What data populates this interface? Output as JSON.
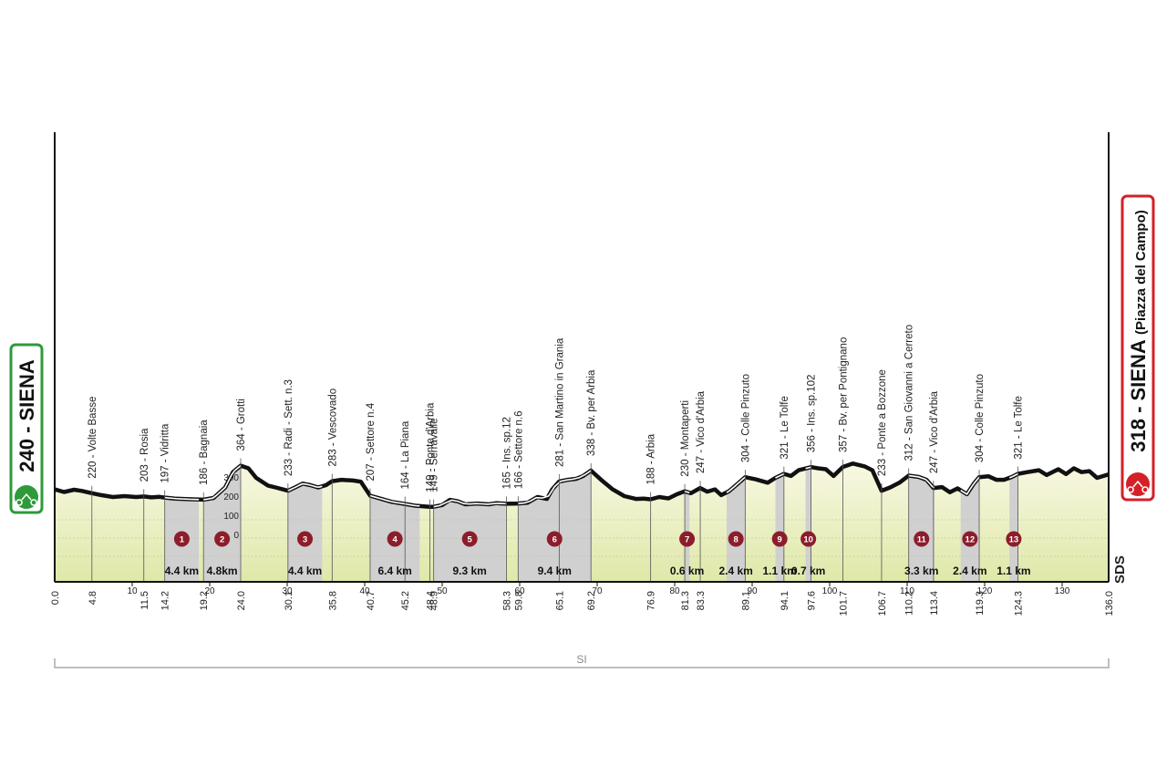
{
  "chart_data": {
    "type": "area",
    "x_unit": "km",
    "xlim": [
      0,
      136
    ],
    "ylim": [
      0,
      400
    ],
    "y_ticks": [
      0,
      100,
      200,
      300
    ],
    "x_ticks": [
      10,
      20,
      30,
      40,
      50,
      60,
      70,
      80,
      90,
      100,
      110,
      120,
      130
    ],
    "start": {
      "altitude": "240",
      "name": "SIENA",
      "label": "240 - SIENA",
      "color": "#2e9a3a"
    },
    "finish": {
      "altitude": "318",
      "name": "SIENA",
      "place": "(Piazza del Campo)",
      "label": "318 - SIENA (Piazza del Campo)",
      "color": "#d42027"
    },
    "waypoints": [
      {
        "km": "0.0",
        "label": ""
      },
      {
        "km": "4.8",
        "label": "220 - Volte Basse"
      },
      {
        "km": "11.5",
        "label": "203 - Rosia"
      },
      {
        "km": "14.2",
        "label": "197 - Vidritta"
      },
      {
        "km": "19.2",
        "label": "186 - Bagnaia"
      },
      {
        "km": "24.0",
        "label": "364 - Grotti"
      },
      {
        "km": "30.1",
        "label": "233 - Radi - Sett. n.3"
      },
      {
        "km": "35.8",
        "label": "283 - Vescovado"
      },
      {
        "km": "40.7",
        "label": "207 - Settore n.4"
      },
      {
        "km": "45.2",
        "label": "164 - La Piana"
      },
      {
        "km": "48.4",
        "label": "149 - Ponte d'Arbia"
      },
      {
        "km": "48.9",
        "label": "149 - Serravalle"
      },
      {
        "km": "58.3",
        "label": "165 - Ins. sp.12"
      },
      {
        "km": "59.8",
        "label": "166 - Settore n.6"
      },
      {
        "km": "65.1",
        "label": "281 - San Martino in Grania"
      },
      {
        "km": "69.2",
        "label": "338 - Bv. per Arbia"
      },
      {
        "km": "76.9",
        "label": "188 - Arbia"
      },
      {
        "km": "81.3",
        "label": "230 - Montaperti"
      },
      {
        "km": "83.3",
        "label": "247 - Vico d'Arbia"
      },
      {
        "km": "89.1",
        "label": "304 - Colle Pinzuto"
      },
      {
        "km": "94.1",
        "label": "321 - Le Tolfe"
      },
      {
        "km": "97.6",
        "label": "356 - Ins. sp.102"
      },
      {
        "km": "101.7",
        "label": "357 - Bv. per Pontignano"
      },
      {
        "km": "106.7",
        "label": "233 - Ponte a Bozzone"
      },
      {
        "km": "110.2",
        "label": "312 - San Giovanni a Cerreto"
      },
      {
        "km": "113.4",
        "label": "247 - Vico d'Arbia"
      },
      {
        "km": "119.3",
        "label": "304 - Colle Pinzuto"
      },
      {
        "km": "124.3",
        "label": "321 - Le Tolfe"
      },
      {
        "km": "136.0",
        "label": ""
      }
    ],
    "gravel_sectors": [
      {
        "n": "1",
        "start": 14.2,
        "end": 18.6,
        "length": "4.4 km"
      },
      {
        "n": "2",
        "start": 19.2,
        "end": 24.0,
        "length": "4.8km"
      },
      {
        "n": "3",
        "start": 30.1,
        "end": 34.5,
        "length": "4.4 km"
      },
      {
        "n": "4",
        "start": 40.7,
        "end": 47.1,
        "length": "6.4 km"
      },
      {
        "n": "5",
        "start": 48.9,
        "end": 58.2,
        "length": "9.3 km"
      },
      {
        "n": "6",
        "start": 59.8,
        "end": 69.2,
        "length": "9.4 km"
      },
      {
        "n": "7",
        "start": 81.3,
        "end": 81.9,
        "length": "0.6 km"
      },
      {
        "n": "8",
        "start": 86.7,
        "end": 89.1,
        "length": "2.4 km"
      },
      {
        "n": "9",
        "start": 93.0,
        "end": 94.1,
        "length": "1.1 km"
      },
      {
        "n": "10",
        "start": 96.9,
        "end": 97.6,
        "length": "0.7 km"
      },
      {
        "n": "11",
        "start": 110.2,
        "end": 113.5,
        "length": "3.3 km"
      },
      {
        "n": "12",
        "start": 116.9,
        "end": 119.3,
        "length": "2.4 km"
      },
      {
        "n": "13",
        "start": 123.2,
        "end": 124.3,
        "length": "1.1 km"
      }
    ],
    "profile": [
      [
        0,
        240
      ],
      [
        1.2,
        226
      ],
      [
        2.5,
        238
      ],
      [
        3.5,
        232
      ],
      [
        4.8,
        220
      ],
      [
        6,
        210
      ],
      [
        7.5,
        200
      ],
      [
        9,
        205
      ],
      [
        10.5,
        200
      ],
      [
        11.5,
        203
      ],
      [
        12.5,
        198
      ],
      [
        13.5,
        201
      ],
      [
        14.2,
        197
      ],
      [
        15.5,
        192
      ],
      [
        17,
        189
      ],
      [
        19.2,
        186
      ],
      [
        20.5,
        195
      ],
      [
        22,
        250
      ],
      [
        23,
        330
      ],
      [
        24,
        364
      ],
      [
        25,
        350
      ],
      [
        26,
        300
      ],
      [
        27.5,
        260
      ],
      [
        28.5,
        250
      ],
      [
        30.1,
        233
      ],
      [
        31,
        250
      ],
      [
        32,
        270
      ],
      [
        33,
        262
      ],
      [
        34,
        250
      ],
      [
        35,
        262
      ],
      [
        35.8,
        283
      ],
      [
        37,
        290
      ],
      [
        38.5,
        286
      ],
      [
        39.5,
        280
      ],
      [
        40.7,
        207
      ],
      [
        42,
        192
      ],
      [
        43.5,
        175
      ],
      [
        45.2,
        164
      ],
      [
        46.5,
        155
      ],
      [
        48.4,
        149
      ],
      [
        48.9,
        149
      ],
      [
        50,
        158
      ],
      [
        51,
        185
      ],
      [
        52,
        178
      ],
      [
        53,
        162
      ],
      [
        54.5,
        166
      ],
      [
        56,
        162
      ],
      [
        57,
        168
      ],
      [
        58.3,
        165
      ],
      [
        59.8,
        166
      ],
      [
        61,
        170
      ],
      [
        62.3,
        200
      ],
      [
        63.5,
        190
      ],
      [
        64.2,
        240
      ],
      [
        65.1,
        281
      ],
      [
        66.2,
        290
      ],
      [
        67.3,
        295
      ],
      [
        68.2,
        310
      ],
      [
        69.2,
        338
      ],
      [
        70.5,
        290
      ],
      [
        72,
        240
      ],
      [
        73.5,
        205
      ],
      [
        75,
        190
      ],
      [
        76,
        192
      ],
      [
        76.9,
        188
      ],
      [
        78,
        200
      ],
      [
        79.2,
        193
      ],
      [
        80.3,
        215
      ],
      [
        81.3,
        230
      ],
      [
        82.1,
        220
      ],
      [
        83.3,
        247
      ],
      [
        84.2,
        228
      ],
      [
        85.2,
        240
      ],
      [
        86,
        210
      ],
      [
        87,
        230
      ],
      [
        88,
        265
      ],
      [
        89.1,
        304
      ],
      [
        90.5,
        292
      ],
      [
        92,
        275
      ],
      [
        93,
        300
      ],
      [
        94.1,
        321
      ],
      [
        95,
        310
      ],
      [
        96,
        340
      ],
      [
        97.6,
        356
      ],
      [
        98.5,
        350
      ],
      [
        99.5,
        345
      ],
      [
        100.5,
        310
      ],
      [
        101.7,
        357
      ],
      [
        103,
        375
      ],
      [
        104.5,
        360
      ],
      [
        105.5,
        340
      ],
      [
        106.7,
        233
      ],
      [
        107.8,
        250
      ],
      [
        109,
        275
      ],
      [
        110.2,
        312
      ],
      [
        111.5,
        305
      ],
      [
        112.5,
        290
      ],
      [
        113.4,
        247
      ],
      [
        114.5,
        252
      ],
      [
        115.5,
        225
      ],
      [
        116.5,
        245
      ],
      [
        117.7,
        215
      ],
      [
        118.6,
        270
      ],
      [
        119.3,
        304
      ],
      [
        120.5,
        308
      ],
      [
        121.5,
        290
      ],
      [
        122.5,
        290
      ],
      [
        123.5,
        305
      ],
      [
        124.3,
        321
      ],
      [
        125.5,
        330
      ],
      [
        127,
        340
      ],
      [
        128,
        315
      ],
      [
        129.5,
        345
      ],
      [
        130.5,
        320
      ],
      [
        131.5,
        350
      ],
      [
        132.5,
        330
      ],
      [
        133.5,
        335
      ],
      [
        134.5,
        300
      ],
      [
        136,
        318
      ]
    ]
  },
  "footer": {
    "label": "SI"
  },
  "brand": {
    "label": "SDS"
  }
}
